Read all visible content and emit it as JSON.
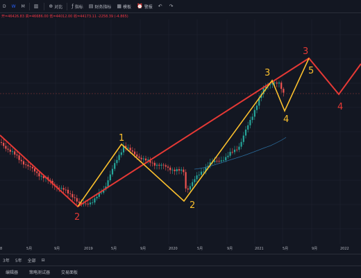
{
  "toolbar": {
    "timeframes": [
      "D",
      "W",
      "M"
    ],
    "active_timeframe": "W",
    "compare_label": "对比",
    "indicators_label": "指标",
    "financials_label": "财务指标",
    "templates_label": "模板",
    "alert_label": "警报",
    "icons": [
      "bar-style-icon",
      "compare-icon",
      "indicators-icon",
      "financials-icon",
      "templates-icon",
      "alert-icon",
      "undo-icon",
      "redo-icon"
    ]
  },
  "ohlc": {
    "open": "开=46426.83",
    "high": "高=46686.00",
    "low": "低=44012.00",
    "close": "收=44173.11",
    "change": "-2258.39 (-4.865)"
  },
  "bottom": {
    "ranges": [
      "3年",
      "5年",
      "全部"
    ]
  },
  "panels": [
    "编辑器",
    "策略测试器",
    "交易面板"
  ],
  "chart_data": {
    "type": "candlestick",
    "x_tick_labels": [
      "8",
      "5月",
      "9月",
      "2019",
      "5月",
      "9月",
      "2020",
      "5月",
      "9月",
      "2021",
      "5月",
      "9月",
      "2022"
    ],
    "wave_labels": [
      {
        "text": "2",
        "color": "red"
      },
      {
        "text": "1",
        "color": "yellow"
      },
      {
        "text": "2",
        "color": "yellow"
      },
      {
        "text": "3",
        "color": "yellow"
      },
      {
        "text": "4",
        "color": "yellow"
      },
      {
        "text": "5",
        "color": "yellow"
      },
      {
        "text": "3",
        "color": "red"
      },
      {
        "text": "4",
        "color": "red"
      }
    ],
    "colors": {
      "up": "#26a69a",
      "down": "#ef5350",
      "red_wave": "#e53935",
      "yellow_wave": "#fbc02d",
      "ma": "#2b6d9e"
    }
  }
}
